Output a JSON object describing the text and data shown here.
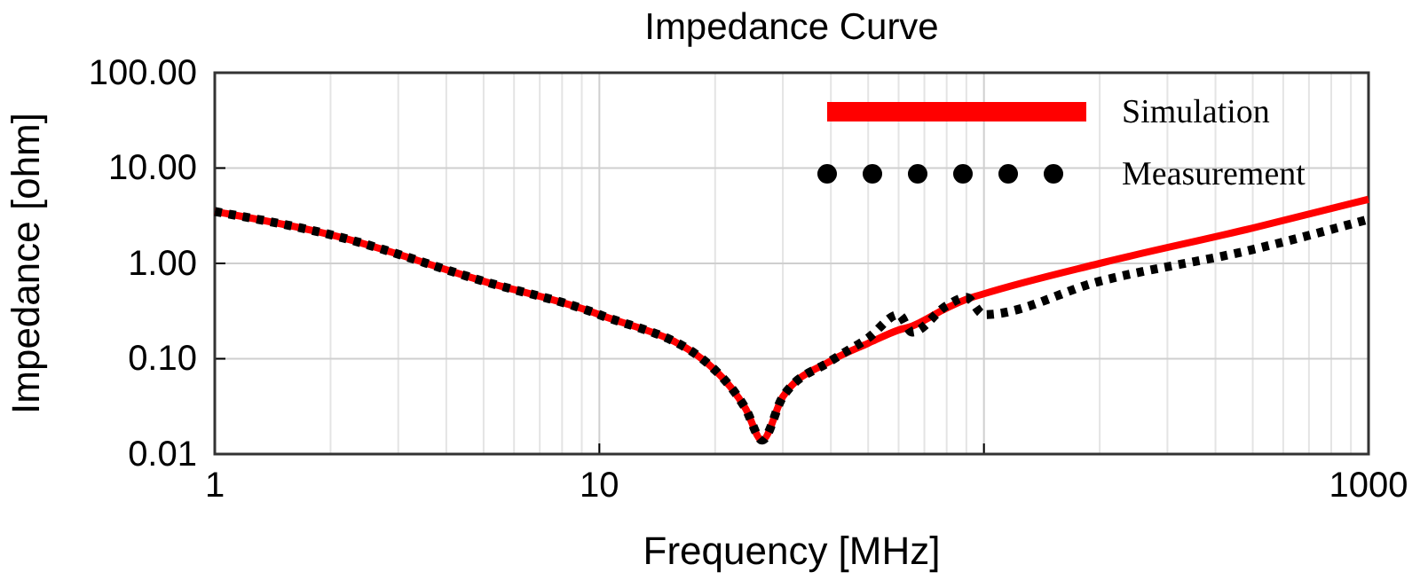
{
  "chart_data": {
    "type": "line",
    "title": "Impedance Curve",
    "xlabel": "Frequency [MHz]",
    "ylabel": "Impedance [ohm]",
    "log": "xy",
    "grid": true,
    "legend": "top right",
    "xlim": [
      1,
      1000
    ],
    "xticks": [
      1,
      10,
      {
        "value": 100,
        "label": null
      },
      1000
    ],
    "ylim": [
      0.01,
      100
    ],
    "yticks": [
      {
        "value": 0.01,
        "label": "0.01"
      },
      {
        "value": 0.1,
        "label": "0.10"
      },
      {
        "value": 1,
        "label": "1.00"
      },
      {
        "value": 10,
        "label": "10.00"
      },
      {
        "value": 100,
        "label": "100.00"
      }
    ],
    "x": [
      1,
      2,
      5,
      10,
      20,
      24,
      26.5,
      30,
      40,
      50,
      60,
      65,
      80,
      90,
      100,
      200,
      500,
      1000
    ],
    "series": [
      {
        "name": "Simulation",
        "color": "#ff0000",
        "line_style": "solid",
        "values": [
          3.5,
          2.0,
          0.65,
          0.29,
          0.076,
          0.03,
          0.014,
          0.04,
          0.095,
          0.145,
          0.2,
          0.22,
          0.34,
          0.42,
          0.48,
          1.0,
          2.35,
          4.7
        ]
      },
      {
        "name": "Measurement",
        "color": "#000000",
        "line_style": "dotted",
        "values": [
          3.5,
          2.0,
          0.65,
          0.29,
          0.076,
          0.03,
          0.014,
          0.04,
          0.095,
          0.165,
          0.29,
          0.19,
          0.36,
          0.44,
          0.29,
          0.65,
          1.4,
          2.9
        ]
      }
    ]
  }
}
